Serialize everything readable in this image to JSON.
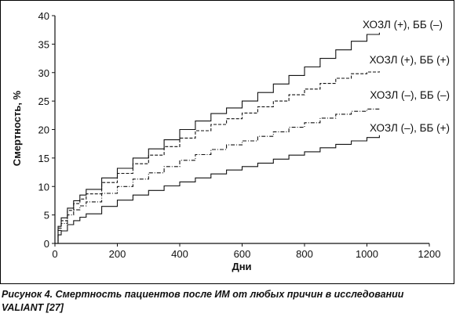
{
  "chart_data": {
    "type": "line",
    "title": "",
    "xlabel": "Дни",
    "ylabel": "Смертность, %",
    "xlim": [
      0,
      1200
    ],
    "ylim": [
      0,
      40
    ],
    "xticks": [
      0,
      200,
      400,
      600,
      800,
      1000,
      1200
    ],
    "yticks": [
      0,
      5,
      10,
      15,
      20,
      25,
      30,
      35,
      40
    ],
    "grid": false,
    "legend": "labels at line ends (right)",
    "series": [
      {
        "name": "ХОЗЛ (+), ББ (–)",
        "color": "#111111",
        "style": "solid",
        "x": [
          0,
          10,
          20,
          40,
          60,
          80,
          100,
          150,
          200,
          250,
          300,
          350,
          400,
          450,
          500,
          550,
          600,
          650,
          700,
          750,
          800,
          850,
          900,
          950,
          1000,
          1040
        ],
        "y": [
          0,
          3,
          4.5,
          6.2,
          7.5,
          8.5,
          9.5,
          11.5,
          13.2,
          15,
          16.6,
          18.2,
          20,
          21.5,
          22.8,
          23.8,
          25,
          26.5,
          28,
          29.5,
          31,
          32.5,
          34,
          35.5,
          36.7,
          37
        ]
      },
      {
        "name": "ХОЗЛ (+), ББ (+)",
        "color": "#111111",
        "style": "dashed",
        "x": [
          0,
          10,
          20,
          40,
          60,
          80,
          100,
          150,
          200,
          250,
          300,
          350,
          400,
          450,
          500,
          550,
          600,
          650,
          700,
          750,
          800,
          850,
          900,
          950,
          1000,
          1040
        ],
        "y": [
          0,
          2.7,
          4,
          5.8,
          7,
          7.8,
          8.7,
          10.7,
          12.3,
          14,
          15.5,
          17,
          18.5,
          19.8,
          20.9,
          21.9,
          22.9,
          24,
          25,
          26.1,
          27.1,
          28.1,
          29,
          29.8,
          30.1,
          30.2
        ]
      },
      {
        "name": "ХОЗЛ (–), ББ (–)",
        "color": "#111111",
        "style": "dashdot",
        "x": [
          0,
          10,
          20,
          40,
          60,
          80,
          100,
          150,
          200,
          250,
          300,
          350,
          400,
          450,
          500,
          550,
          600,
          650,
          700,
          750,
          800,
          850,
          900,
          950,
          1000,
          1040
        ],
        "y": [
          0,
          2.3,
          3.5,
          5,
          5.9,
          6.6,
          7.3,
          8.8,
          10,
          11.3,
          12.4,
          13.5,
          14.6,
          15.6,
          16.5,
          17.3,
          18,
          18.8,
          19.6,
          20.4,
          21.2,
          22,
          22.7,
          23.2,
          23.6,
          23.8
        ]
      },
      {
        "name": "ХОЗЛ (–), ББ (+)",
        "color": "#111111",
        "style": "solid",
        "x": [
          0,
          10,
          20,
          40,
          60,
          80,
          100,
          150,
          200,
          250,
          300,
          350,
          400,
          450,
          500,
          550,
          600,
          650,
          700,
          750,
          800,
          850,
          900,
          950,
          1000,
          1040
        ],
        "y": [
          0,
          1.5,
          2.2,
          3.3,
          4,
          4.6,
          5.2,
          6.5,
          7.6,
          8.5,
          9.3,
          10.1,
          10.8,
          11.5,
          12.2,
          12.9,
          13.5,
          14.1,
          14.8,
          15.5,
          16.1,
          16.8,
          17.4,
          18,
          18.6,
          19
        ]
      }
    ]
  },
  "caption": {
    "line1": "Рисунок 4. Смертность пациентов после ИМ от любых причин в исследовании",
    "line2": "VALIANT  [27]"
  }
}
